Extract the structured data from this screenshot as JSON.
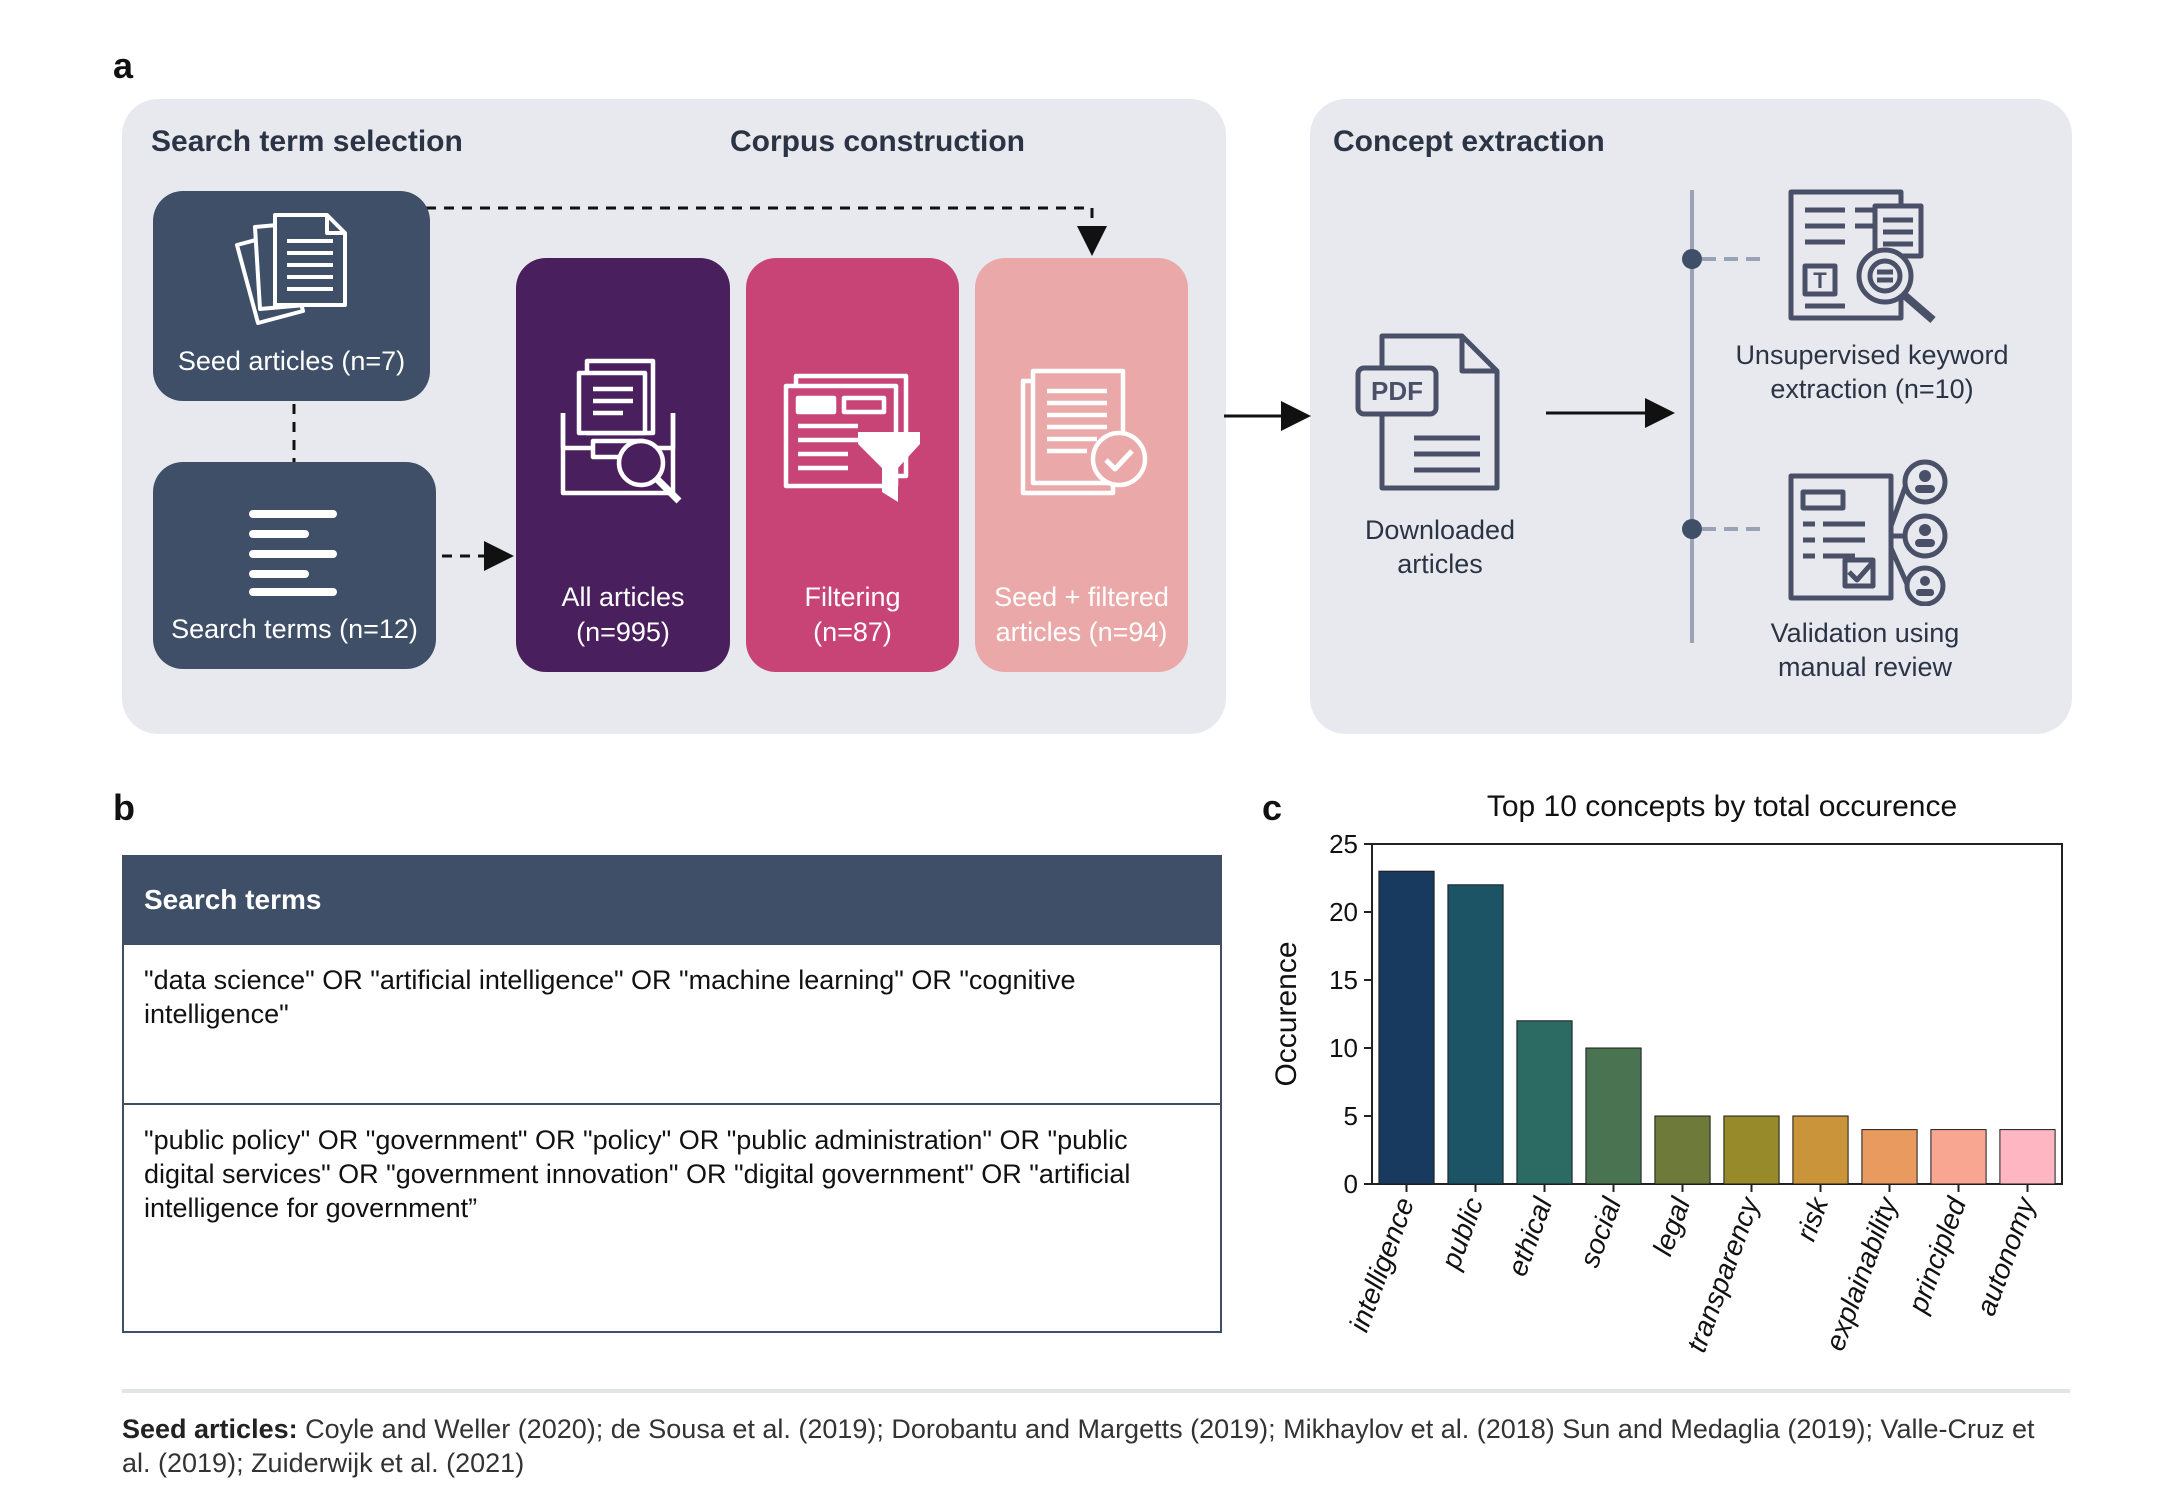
{
  "panels": {
    "a": "a",
    "b": "b",
    "c": "c"
  },
  "sections": {
    "search_term_selection": "Search term selection",
    "corpus_construction": "Corpus construction",
    "concept_extraction": "Concept extraction"
  },
  "cards": {
    "seed_articles": "Seed articles (n=7)",
    "search_terms": "Search terms (n=12)",
    "all_articles_1": "All articles",
    "all_articles_2": "(n=995)",
    "filtering_1": "Filtering",
    "filtering_2": "(n=87)",
    "seed_filtered_1": "Seed + filtered",
    "seed_filtered_2": "articles (n=94)"
  },
  "extraction": {
    "pdf_label": "PDF",
    "downloaded_1": "Downloaded",
    "downloaded_2": "articles",
    "keyword_1": "Unsupervised keyword",
    "keyword_2": "extraction (n=10)",
    "validation_1": "Validation using",
    "validation_2": "manual review"
  },
  "colors": {
    "navy": "#3e4f67",
    "purple": "#4a1f5e",
    "magenta": "#c94476",
    "pink": "#eaa8a9",
    "icon_stroke": "#4a5068"
  },
  "table": {
    "header": "Search terms",
    "row1": "\"data science\" OR \"artificial intelligence\" OR \"machine learning\" OR \"cognitive intelligence\"",
    "row2": "\"public policy\" OR \"government\" OR \"policy\" OR \"public administration\" OR \"public digital services\" OR \"government innovation\" OR \"digital government\" OR \"artificial intelligence for government”"
  },
  "chart_data": {
    "type": "bar",
    "title": "Top 10 concepts by total occurence",
    "xlabel": "",
    "ylabel": "Occurence",
    "ylim": [
      0,
      25
    ],
    "yticks": [
      0,
      5,
      10,
      15,
      20,
      25
    ],
    "categories": [
      "intelligence",
      "public",
      "ethical",
      "social",
      "legal",
      "transparency",
      "risk",
      "explainability",
      "principled",
      "autonomy"
    ],
    "values": [
      23,
      22,
      12,
      10,
      5,
      5,
      5,
      4,
      4,
      4
    ],
    "colors": [
      "#173a5e",
      "#1c5466",
      "#2c6a64",
      "#4a7351",
      "#6d7a39",
      "#978a2a",
      "#c9943a",
      "#e99a5e",
      "#f8a592",
      "#fdb6c2"
    ],
    "grid": false
  },
  "footer": {
    "label": "Seed articles:",
    "text": " Coyle and Weller (2020); de Sousa et al. (2019); Dorobantu and Margetts (2019); Mikhaylov et al. (2018) Sun and Medaglia (2019); Valle-Cruz et al. (2019); Zuiderwijk et al. (2021)"
  }
}
